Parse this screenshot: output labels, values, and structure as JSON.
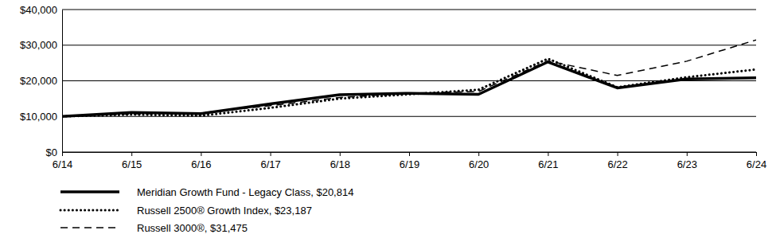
{
  "chart_data": {
    "type": "line",
    "categories": [
      "6/14",
      "6/15",
      "6/16",
      "6/17",
      "6/18",
      "6/19",
      "6/20",
      "6/21",
      "6/22",
      "6/23",
      "6/24"
    ],
    "series": [
      {
        "name": "Meridian Growth Fund - Legacy Class, $20,814",
        "color": "#000000",
        "line_style": "solid",
        "values": [
          10000,
          11100,
          10800,
          13500,
          16100,
          16500,
          16200,
          25300,
          18000,
          20500,
          20814
        ]
      },
      {
        "name": "Russell 2500® Growth Index, $23,187",
        "color": "#000000",
        "line_style": "dotted",
        "values": [
          10000,
          10500,
          10200,
          12400,
          15000,
          16200,
          17500,
          26200,
          18200,
          21000,
          23187
        ]
      },
      {
        "name": "Russell 3000®, $31,475",
        "color": "#000000",
        "line_style": "dashed",
        "values": [
          10000,
          10700,
          11000,
          13000,
          15300,
          16500,
          17000,
          25600,
          21500,
          25500,
          31475
        ]
      }
    ],
    "ylim": [
      0,
      40000
    ],
    "yticks": [
      {
        "value": 0,
        "label": "$0"
      },
      {
        "value": 10000,
        "label": "$10,000"
      },
      {
        "value": 20000,
        "label": "$20,000"
      },
      {
        "value": 30000,
        "label": "$30,000"
      },
      {
        "value": 40000,
        "label": "$40,000"
      }
    ],
    "grid": true,
    "legend": "bottom"
  }
}
